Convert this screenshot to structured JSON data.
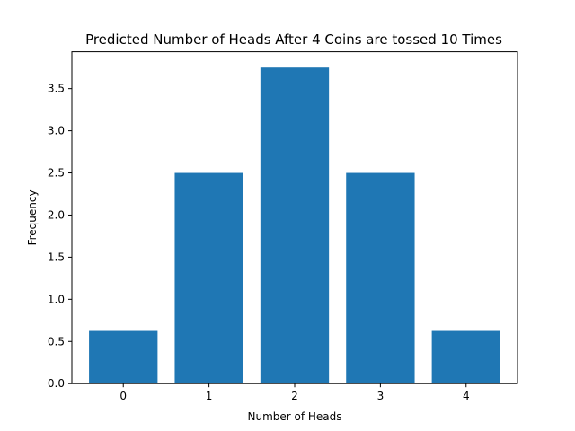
{
  "chart_data": {
    "type": "bar",
    "title": "Predicted Number of Heads After 4 Coins are tossed 10 Times",
    "xlabel": "Number of Heads",
    "ylabel": "Frequency",
    "categories": [
      "0",
      "1",
      "2",
      "3",
      "4"
    ],
    "values": [
      0.625,
      2.5,
      3.75,
      2.5,
      0.625
    ],
    "xlim": [
      -0.6,
      4.6
    ],
    "ylim": [
      0,
      3.9375
    ],
    "yticks": [
      0.0,
      0.5,
      1.0,
      1.5,
      2.0,
      2.5,
      3.0,
      3.5
    ],
    "ytick_labels": [
      "0.0",
      "0.5",
      "1.0",
      "1.5",
      "2.0",
      "2.5",
      "3.0",
      "3.5"
    ],
    "grid": false,
    "bar_color": "#1f77b4"
  }
}
